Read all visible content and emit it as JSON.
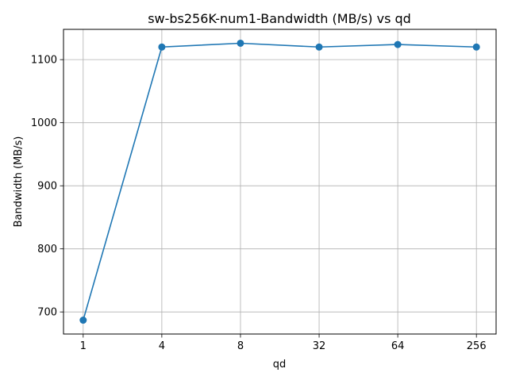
{
  "chart_data": {
    "type": "line",
    "title": "sw-bs256K-num1-Bandwidth (MB/s) vs qd",
    "xlabel": "qd",
    "ylabel": "Bandwidth (MB/s)",
    "categories": [
      "1",
      "4",
      "8",
      "32",
      "64",
      "256"
    ],
    "series": [
      {
        "values": [
          687,
          1120,
          1126,
          1120,
          1124,
          1120
        ]
      }
    ],
    "ylim": [
      665,
      1148
    ],
    "yticks": [
      "700",
      "800",
      "900",
      "1000",
      "1100"
    ],
    "grid": true,
    "colors": {
      "line": "#1f77b4",
      "grid": "#b0b0b0",
      "axis": "#000000"
    }
  }
}
